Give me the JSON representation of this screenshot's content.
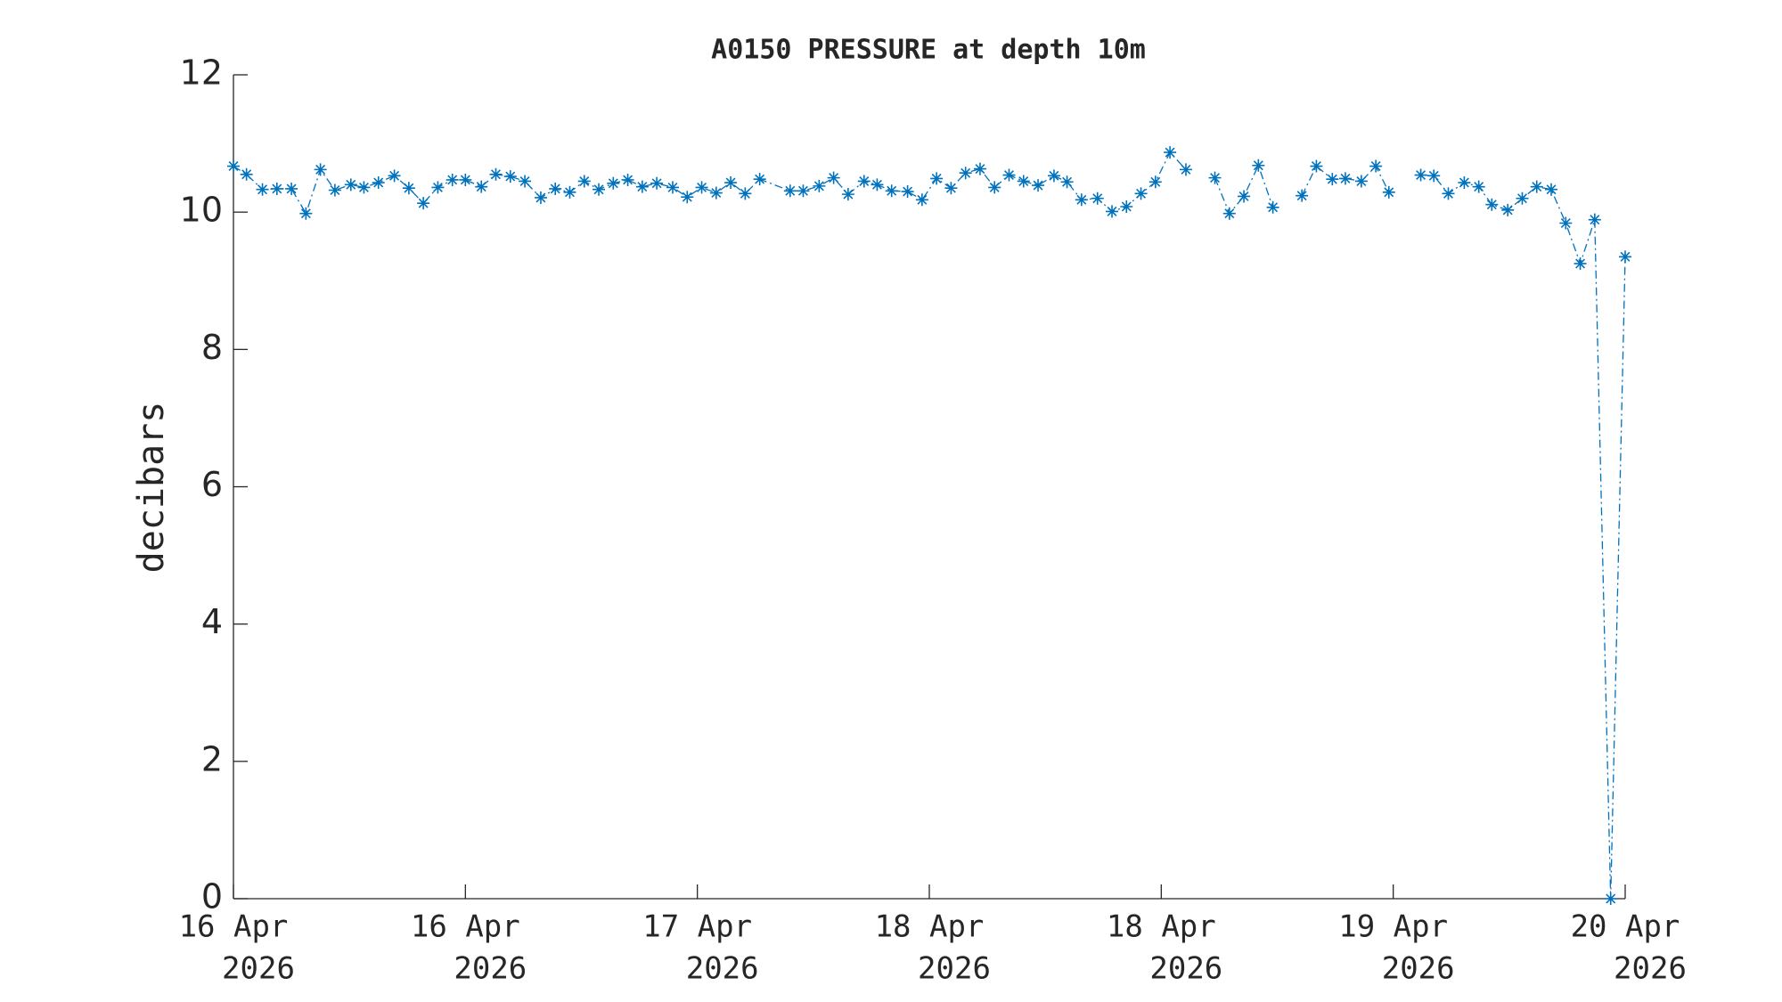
{
  "chart_data": {
    "type": "line",
    "title": "A0150 PRESSURE at depth 10m",
    "ylabel": "decibars",
    "xlim": [
      0,
      96
    ],
    "xticks": [
      {
        "value": 0,
        "label": [
          "16 Apr",
          "2026"
        ]
      },
      {
        "value": 16,
        "label": [
          "16 Apr",
          "2026"
        ]
      },
      {
        "value": 32,
        "label": [
          "17 Apr",
          "2026"
        ]
      },
      {
        "value": 48,
        "label": [
          "18 Apr",
          "2026"
        ]
      },
      {
        "value": 64,
        "label": [
          "18 Apr",
          "2026"
        ]
      },
      {
        "value": 80,
        "label": [
          "19 Apr",
          "2026"
        ]
      },
      {
        "value": 96,
        "label": [
          "20 Apr",
          "2026"
        ]
      }
    ],
    "ylim": [
      0,
      12
    ],
    "yticks": [
      0,
      2,
      4,
      6,
      8,
      10,
      12
    ],
    "grid": false,
    "series": [
      {
        "color": "#0072bd",
        "x": [
          0,
          0.9,
          2.0,
          3.0,
          4.0,
          5.0,
          6.0,
          7.0,
          8.1,
          9.0,
          10.0,
          11.1,
          12.1,
          13.1,
          14.1,
          15.1,
          16.0,
          17.1,
          18.1,
          19.1,
          20.1,
          21.2,
          22.2,
          23.2,
          24.2,
          25.2,
          26.2,
          27.2,
          28.2,
          29.2,
          30.3,
          31.3,
          32.3,
          33.3,
          34.3,
          35.3,
          36.3,
          38.4,
          39.3,
          40.4,
          41.4,
          42.4,
          43.5,
          44.4,
          45.4,
          46.5,
          47.5,
          48.5,
          49.5,
          50.5,
          51.5,
          52.5,
          53.5,
          54.5,
          55.5,
          56.6,
          57.5,
          58.5,
          59.6,
          60.6,
          61.6,
          62.6,
          63.6,
          64.6,
          65.7,
          66.7,
          67.7,
          68.7,
          69.7,
          70.7,
          71.7,
          72.7,
          73.7,
          74.7,
          75.8,
          76.7,
          77.8,
          78.8,
          79.7,
          80.8,
          81.9,
          82.8,
          83.8,
          84.9,
          85.9,
          86.8,
          87.9,
          88.9,
          89.9,
          90.9,
          91.9,
          92.9,
          93.9,
          95.0,
          96.0
        ],
        "values": [
          10.67,
          10.55,
          10.33,
          10.34,
          10.34,
          9.98,
          10.62,
          10.32,
          10.4,
          10.36,
          10.43,
          10.53,
          10.35,
          10.13,
          10.36,
          10.47,
          10.47,
          10.37,
          10.55,
          10.52,
          10.45,
          10.21,
          10.34,
          10.29,
          10.45,
          10.33,
          10.42,
          10.47,
          10.37,
          10.42,
          10.36,
          10.22,
          10.36,
          10.28,
          10.43,
          10.27,
          10.48,
          10.31,
          10.31,
          10.38,
          10.5,
          10.26,
          10.45,
          10.4,
          10.31,
          10.3,
          10.18,
          10.49,
          10.35,
          10.57,
          10.63,
          10.36,
          10.54,
          10.45,
          10.39,
          10.53,
          10.44,
          10.18,
          10.2,
          10.01,
          10.08,
          10.27,
          10.44,
          10.87,
          10.62,
          null,
          10.5,
          9.98,
          10.23,
          10.68,
          10.07,
          null,
          10.24,
          10.67,
          10.48,
          10.49,
          10.45,
          10.67,
          10.29,
          null,
          10.54,
          10.53,
          10.27,
          10.43,
          10.37,
          10.11,
          10.03,
          10.2,
          10.37,
          10.33,
          9.84,
          9.25,
          9.89,
          0,
          9.35
        ]
      }
    ]
  }
}
